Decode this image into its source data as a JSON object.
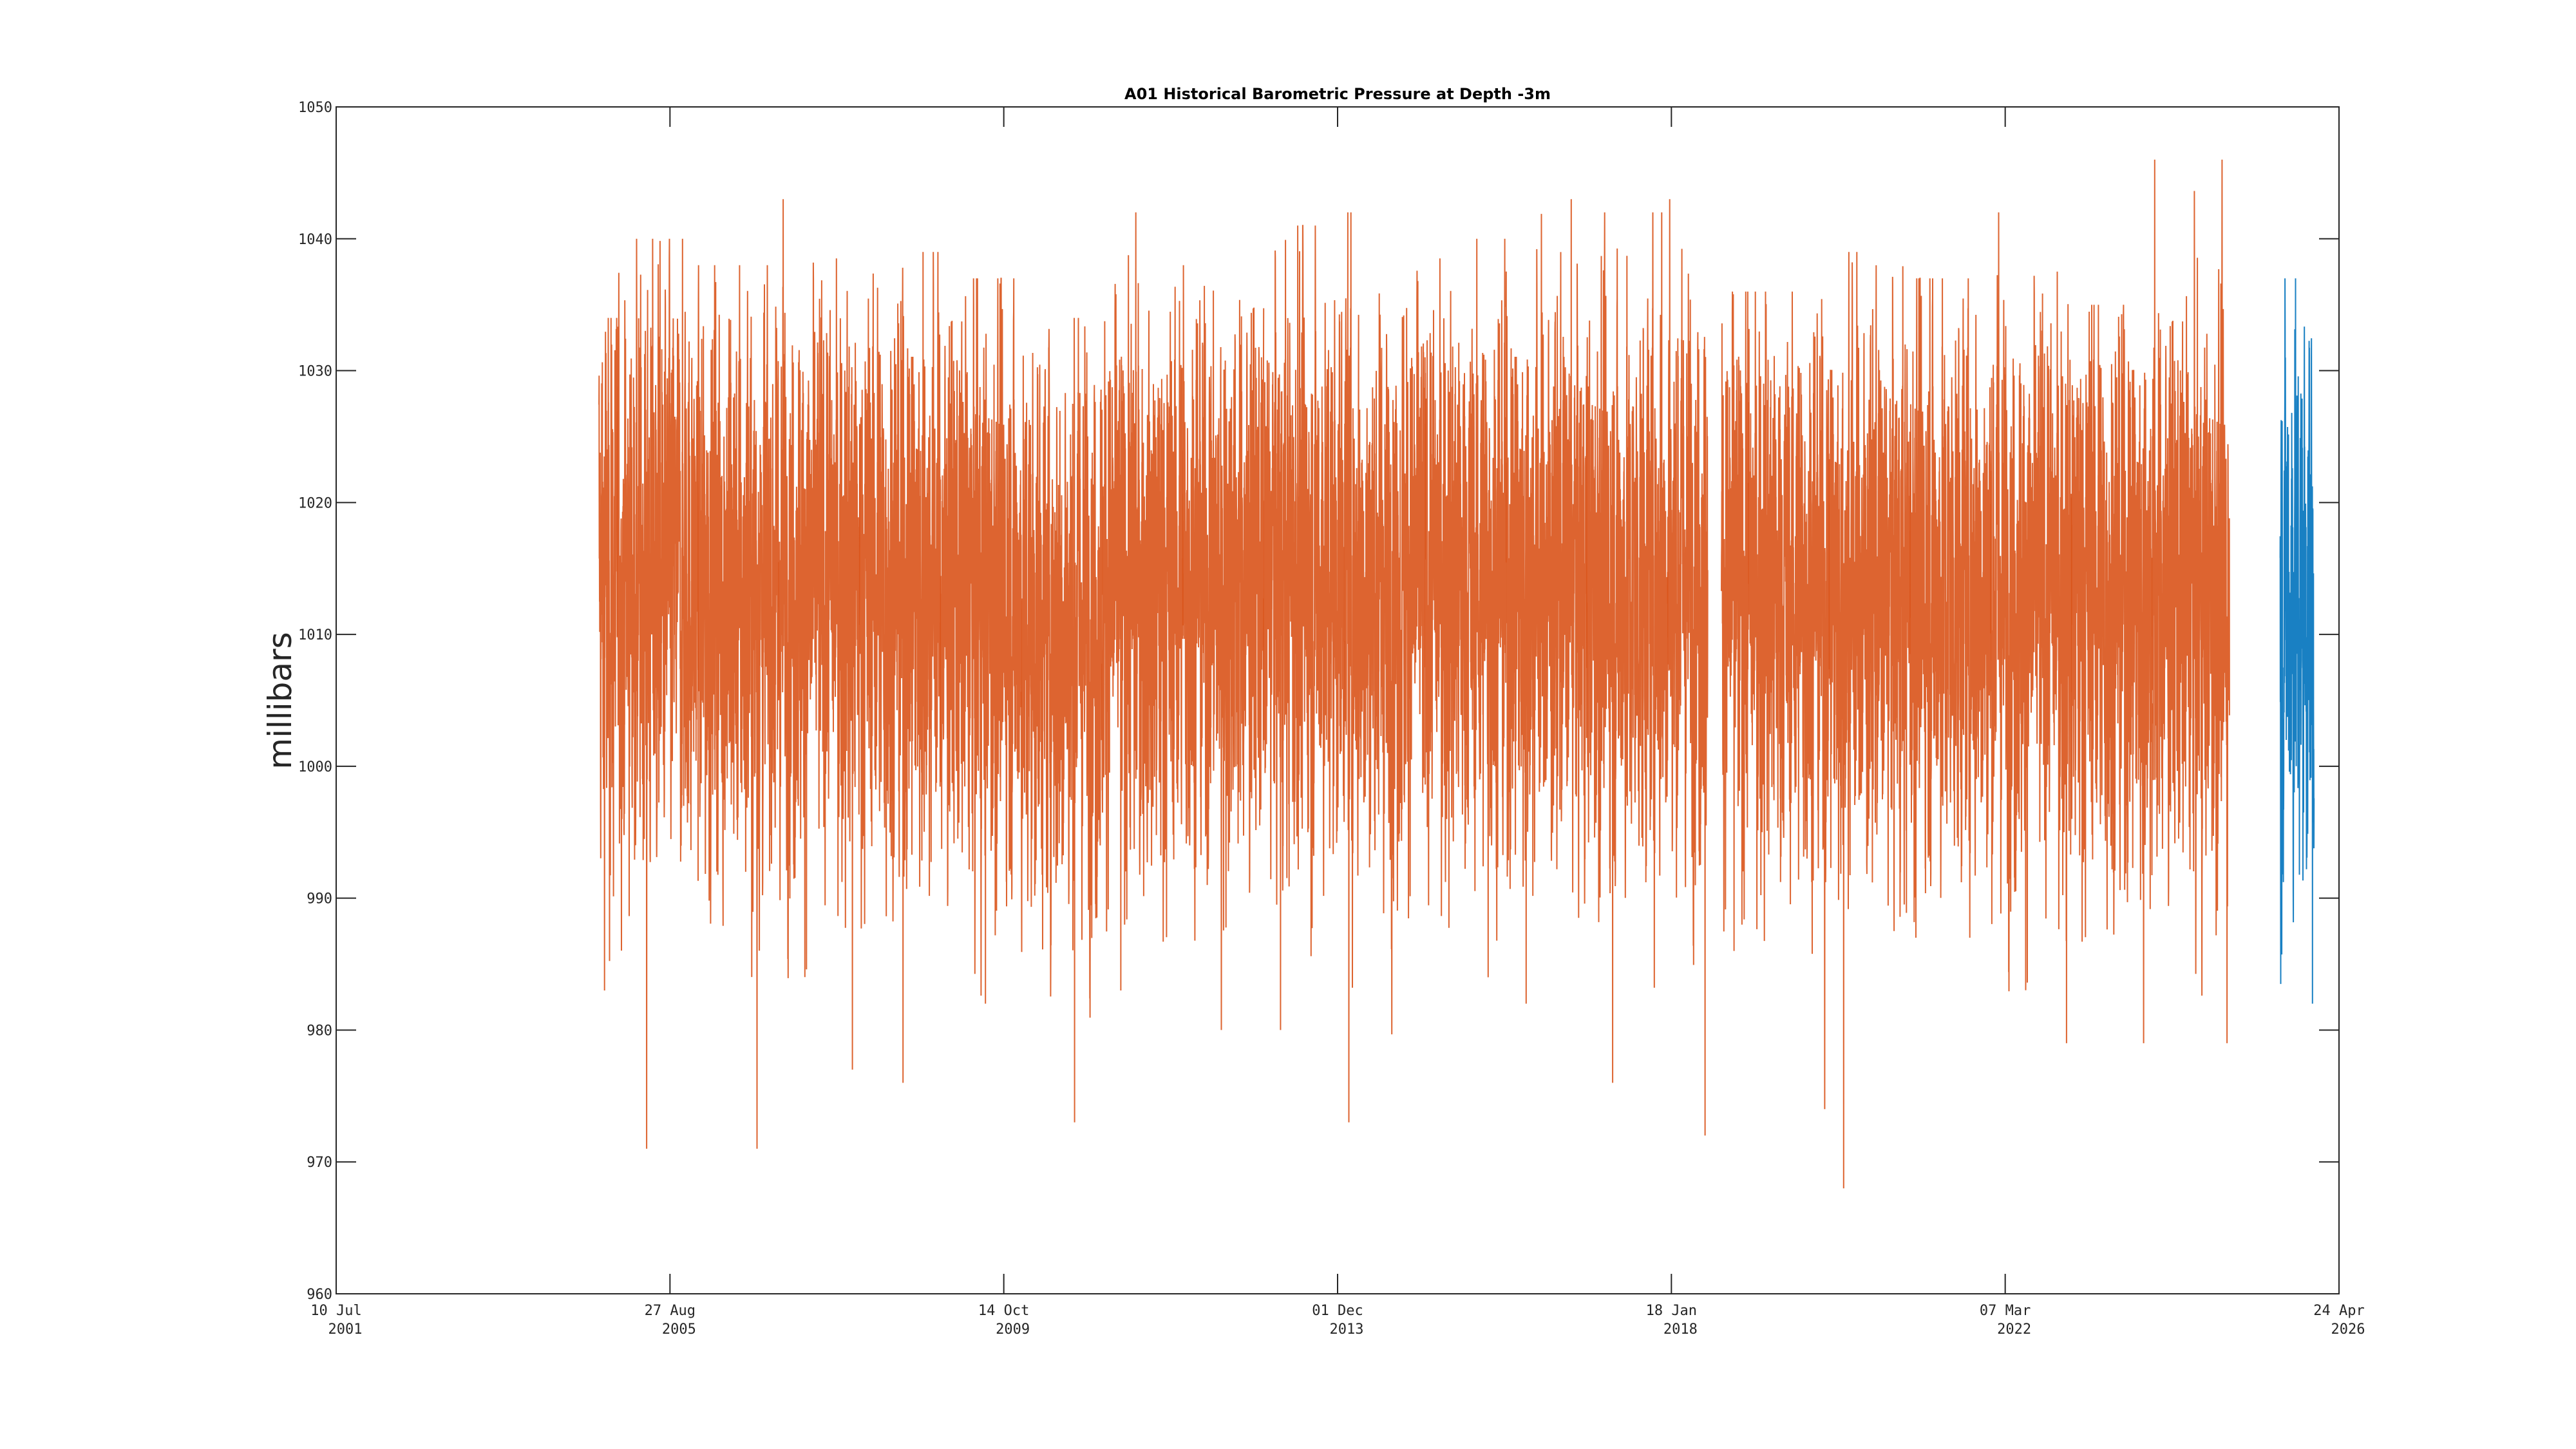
{
  "chart_data": {
    "type": "line",
    "title": "A01 Historical Barometric Pressure at Depth -3m",
    "xlabel": "",
    "ylabel": "millibars",
    "xlim": [
      "2001-07-10",
      "2026-04-24"
    ],
    "ylim": [
      960,
      1050
    ],
    "grid": false,
    "legend": "none",
    "yticks": [
      "960",
      "970",
      "980",
      "990",
      "1000",
      "1010",
      "1020",
      "1030",
      "1040",
      "1050"
    ],
    "xticks": [
      {
        "date": "2001-07-10",
        "day_month": "10 Jul",
        "year": "2001"
      },
      {
        "date": "2005-08-27",
        "day_month": "27 Aug",
        "year": "2005"
      },
      {
        "date": "2009-10-14",
        "day_month": "14 Oct",
        "year": "2009"
      },
      {
        "date": "2013-12-01",
        "day_month": "01 Dec",
        "year": "2013"
      },
      {
        "date": "2018-01-18",
        "day_month": "18 Jan",
        "year": "2018"
      },
      {
        "date": "2022-03-07",
        "day_month": "07 Mar",
        "year": "2022"
      },
      {
        "date": "2026-04-24",
        "day_month": "24 Apr",
        "year": "2026"
      }
    ],
    "series": [
      {
        "color": "#D95319",
        "segments": [
          {
            "start": "2004-10-10",
            "end": "2018-07-01",
            "annual_range": [
              {
                "year": 2004,
                "min": 983,
                "max": 1034,
                "mean": 1013
              },
              {
                "year": 2005,
                "min": 971,
                "max": 1040,
                "mean": 1014
              },
              {
                "year": 2006,
                "min": 971,
                "max": 1038,
                "mean": 1013
              },
              {
                "year": 2007,
                "min": 977,
                "max": 1043,
                "mean": 1014
              },
              {
                "year": 2008,
                "min": 976,
                "max": 1039,
                "mean": 1014
              },
              {
                "year": 2009,
                "min": 982,
                "max": 1037,
                "mean": 1013
              },
              {
                "year": 2010,
                "min": 973,
                "max": 1034,
                "mean": 1011
              },
              {
                "year": 2011,
                "min": 983,
                "max": 1042,
                "mean": 1013
              },
              {
                "year": 2012,
                "min": 980,
                "max": 1038,
                "mean": 1014
              },
              {
                "year": 2013,
                "min": 980,
                "max": 1041,
                "mean": 1015
              },
              {
                "year": 2014,
                "min": 973,
                "max": 1042,
                "mean": 1014
              },
              {
                "year": 2015,
                "min": 984,
                "max": 1040,
                "mean": 1014
              },
              {
                "year": 2016,
                "min": 982,
                "max": 1043,
                "mean": 1014
              },
              {
                "year": 2017,
                "min": 976,
                "max": 1042,
                "mean": 1014
              },
              {
                "year": 2018,
                "min": 972,
                "max": 1043,
                "mean": 1015
              }
            ]
          },
          {
            "start": "2018-09-01",
            "end": "2024-12-15",
            "annual_range": [
              {
                "year": 2018,
                "min": 986,
                "max": 1036,
                "mean": 1013
              },
              {
                "year": 2019,
                "min": 974,
                "max": 1036,
                "mean": 1013
              },
              {
                "year": 2020,
                "min": 968,
                "max": 1039,
                "mean": 1013
              },
              {
                "year": 2021,
                "min": 987,
                "max": 1037,
                "mean": 1014
              },
              {
                "year": 2022,
                "min": 979,
                "max": 1042,
                "mean": 1013
              },
              {
                "year": 2023,
                "min": 979,
                "max": 1035,
                "mean": 1013
              },
              {
                "year": 2024,
                "min": 979,
                "max": 1046,
                "mean": 1013
              }
            ]
          }
        ]
      },
      {
        "color": "#0072BD",
        "segments": [
          {
            "start": "2025-08-01",
            "end": "2026-02-10",
            "annual_range": [
              {
                "year": 2025,
                "min": 982,
                "max": 1037,
                "mean": 1013
              }
            ]
          }
        ]
      }
    ]
  }
}
